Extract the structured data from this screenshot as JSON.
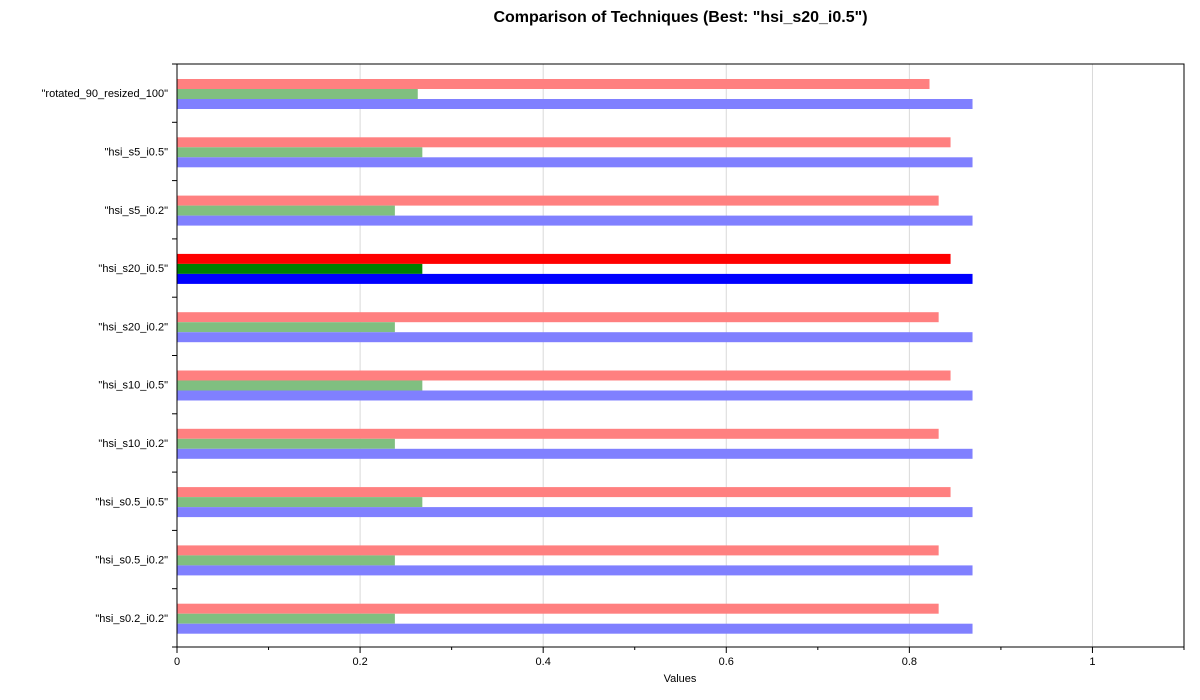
{
  "chart_data": {
    "type": "bar",
    "orientation": "horizontal",
    "title": "Comparison of Techniques (Best: \"hsi_s20_i0.5\")",
    "xlabel": "Values",
    "ylabel": "",
    "xlim": [
      0,
      1.1
    ],
    "x_ticks": [
      0,
      0.2,
      0.4,
      0.6,
      0.8,
      1
    ],
    "x_tick_labels": [
      "0",
      "0.2",
      "0.4",
      "0.6",
      "0.8",
      "1"
    ],
    "grid": "vertical",
    "highlighted_category": "\"hsi_s20_i0.5\"",
    "categories": [
      "\"rotated_90_resized_100\"",
      "\"hsi_s5_i0.5\"",
      "\"hsi_s5_i0.2\"",
      "\"hsi_s20_i0.5\"",
      "\"hsi_s20_i0.2\"",
      "\"hsi_s10_i0.5\"",
      "\"hsi_s10_i0.2\"",
      "\"hsi_s0.5_i0.5\"",
      "\"hsi_s0.5_i0.2\"",
      "\"hsi_s0.2_i0.2\""
    ],
    "series": [
      {
        "color": "#ff0000",
        "faded_color": "#ff8080",
        "values": [
          0.822,
          0.845,
          0.832,
          0.845,
          0.832,
          0.845,
          0.832,
          0.845,
          0.832,
          0.832
        ]
      },
      {
        "color": "#008000",
        "faded_color": "#80bf80",
        "values": [
          0.263,
          0.268,
          0.238,
          0.268,
          0.238,
          0.268,
          0.238,
          0.268,
          0.238,
          0.238
        ]
      },
      {
        "color": "#0000ff",
        "faded_color": "#8080ff",
        "values": [
          0.869,
          0.869,
          0.869,
          0.869,
          0.869,
          0.869,
          0.869,
          0.869,
          0.869,
          0.869
        ]
      }
    ]
  }
}
